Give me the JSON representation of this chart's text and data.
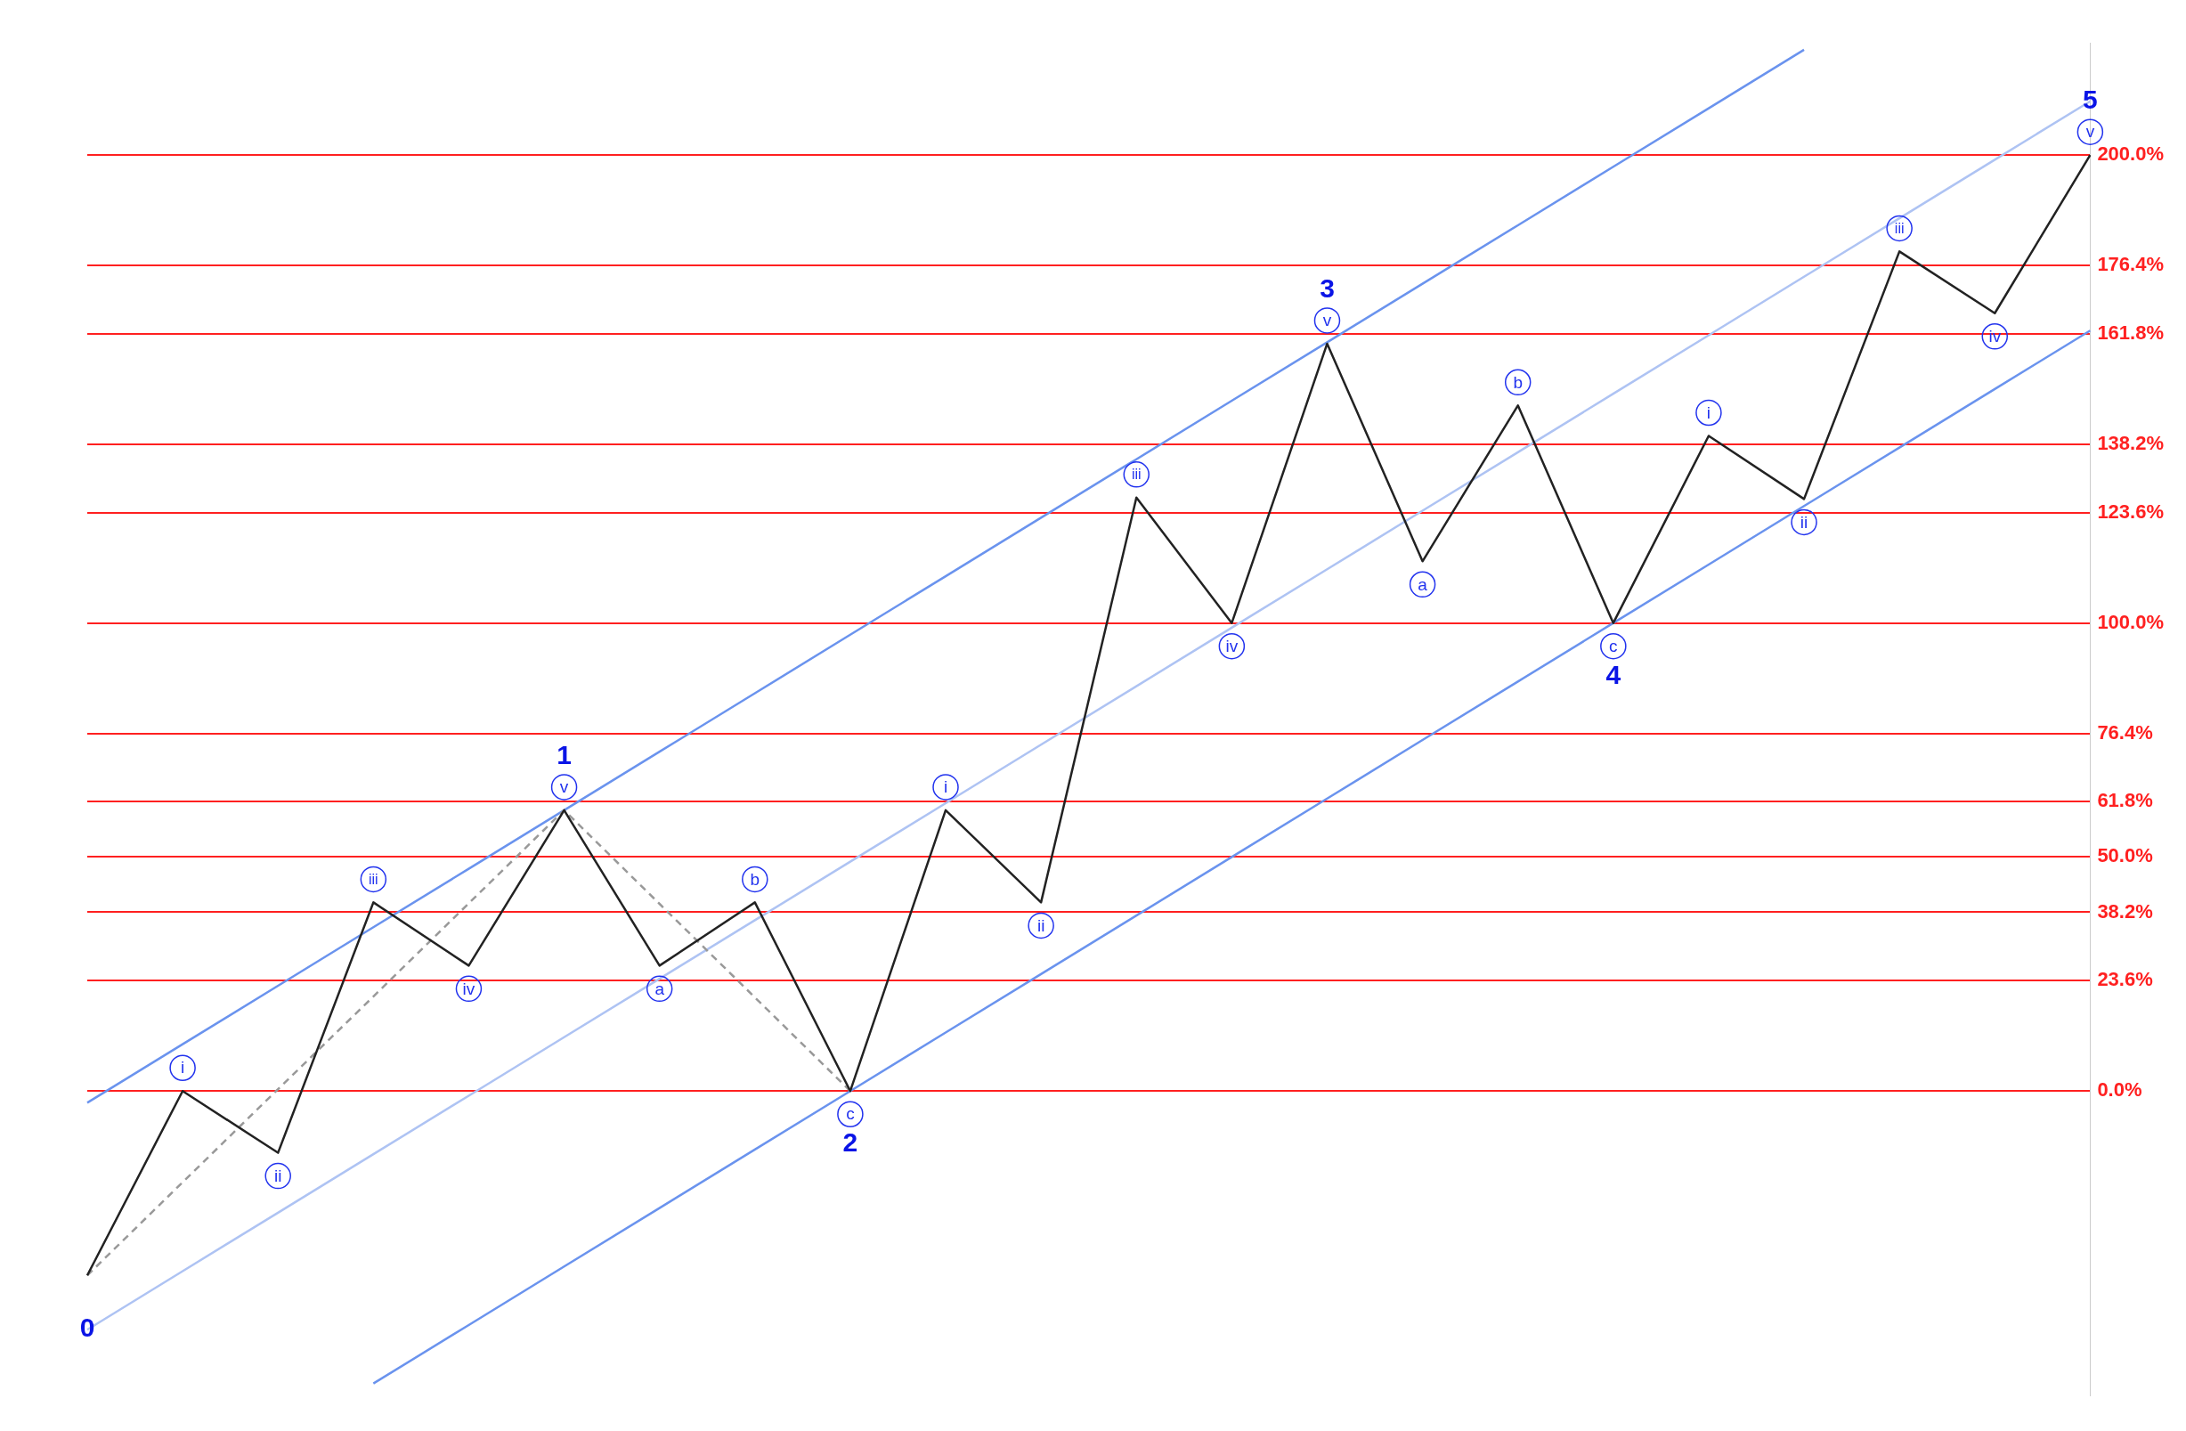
{
  "chart_data": {
    "type": "line",
    "categories": [
      null,
      null,
      null,
      null,
      null,
      null,
      null,
      null,
      null,
      null,
      null,
      null,
      null,
      null,
      null,
      null,
      null,
      null,
      null,
      null,
      null,
      null
    ],
    "ylim": [
      -65,
      224
    ],
    "yticks": [
      {
        "value": 0,
        "label": "0.0%"
      },
      {
        "value": 23.6,
        "label": "23.6%"
      },
      {
        "value": 38.2,
        "label": "38.2%"
      },
      {
        "value": 50,
        "label": "50.0%"
      },
      {
        "value": 61.8,
        "label": "61.8%"
      },
      {
        "value": 76.4,
        "label": "76.4%"
      },
      {
        "value": 100,
        "label": "100.0%"
      },
      {
        "value": 123.6,
        "label": "123.6%"
      },
      {
        "value": 138.2,
        "label": "138.2%"
      },
      {
        "value": 161.8,
        "label": "161.8%"
      },
      {
        "value": 176.4,
        "label": "176.4%"
      },
      {
        "value": 200,
        "label": "200.0%"
      }
    ],
    "tick_labels": "y",
    "grid": "y",
    "legend": false,
    "marker": "none",
    "series": [
      {
        "color": "#222222",
        "values": [
          -39.4,
          0,
          -13.2,
          40.3,
          26.8,
          60,
          26.8,
          40.3,
          0,
          60,
          40.3,
          126.8,
          100,
          159.7,
          113.2,
          146.5,
          100,
          140,
          126.5,
          179.4,
          166.2,
          200
        ],
        "value_labels": [
          null,
          "i",
          "ii",
          "iii",
          "iv",
          "v",
          "a",
          "b",
          "c",
          "i",
          "ii",
          "iii",
          "iv",
          "v",
          "a",
          "b",
          "c",
          "i",
          "ii",
          "iii",
          "iv",
          "v"
        ]
      },
      {
        "color": "#999999",
        "line_style": "dashed",
        "values": [
          -39.4,
          -19.5,
          0.4,
          20.2,
          40.1,
          60,
          40,
          20,
          0,
          null,
          null,
          null,
          null,
          null,
          null,
          null,
          null,
          null,
          null,
          null,
          null,
          null
        ]
      },
      {
        "color": "#6a93ee",
        "values": [
          -2.5,
          10,
          22.5,
          35,
          47.5,
          60,
          72.5,
          85,
          97.5,
          110,
          122.5,
          135,
          147.5,
          160,
          172.5,
          185,
          197.5,
          210,
          222.5,
          null,
          null,
          null
        ]
      },
      {
        "color": "#aec3f3",
        "values": [
          -51,
          -38.5,
          -26,
          -13.5,
          -1,
          11.5,
          24,
          36.5,
          49,
          61.5,
          74,
          86.5,
          99,
          111.5,
          124,
          136.5,
          149,
          161.5,
          174,
          186.5,
          199,
          211.5
        ]
      },
      {
        "color": "#6a93ee",
        "values": [
          null,
          null,
          null,
          -62.5,
          -50,
          -37.5,
          -25,
          -12.5,
          0,
          12.5,
          25,
          37.5,
          50,
          62.5,
          75,
          87.5,
          100,
          112.5,
          125,
          137.5,
          150,
          162.5
        ]
      }
    ],
    "annotations": [
      {
        "text": "0",
        "y": -39.4
      },
      {
        "text": "1",
        "y": 60
      },
      {
        "text": "2",
        "y": 0
      },
      {
        "text": "3",
        "y": 159.7
      },
      {
        "text": "4",
        "y": 100
      },
      {
        "text": "5",
        "y": 200
      }
    ]
  }
}
